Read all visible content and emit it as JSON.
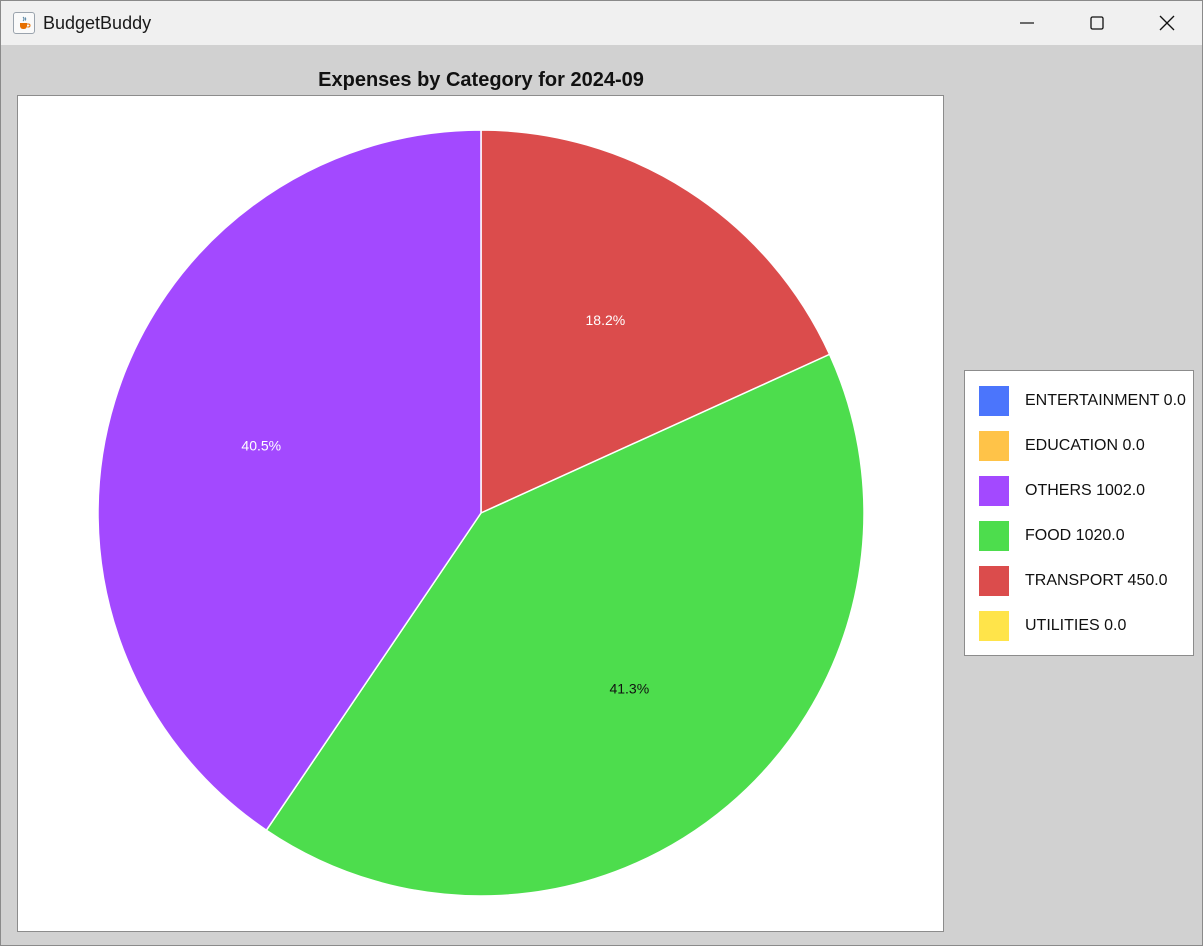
{
  "window": {
    "title": "BudgetBuddy",
    "app_icon": "java-cup-icon",
    "controls": [
      "minimize-icon",
      "maximize-icon",
      "close-icon"
    ]
  },
  "chart_data": {
    "type": "pie",
    "title": "Expenses by Category for 2024-09",
    "slices": [
      {
        "category": "TRANSPORT",
        "value": 450.0,
        "label": "18.2%",
        "color": "#db4c4c",
        "label_color": "#ffffff"
      },
      {
        "category": "FOOD",
        "value": 1020.0,
        "label": "41.3%",
        "color": "#4ddd4d",
        "label_color": "#111111"
      },
      {
        "category": "OTHERS",
        "value": 1002.0,
        "label": "40.5%",
        "color": "#a349ff",
        "label_color": "#ffffff"
      }
    ],
    "legend": {
      "placement": "right",
      "entries": [
        {
          "text": "ENTERTAINMENT 0.0",
          "color": "#4b75fc"
        },
        {
          "text": "EDUCATION 0.0",
          "color": "#ffc348"
        },
        {
          "text": "OTHERS 1002.0",
          "color": "#a349ff"
        },
        {
          "text": "FOOD 1020.0",
          "color": "#4ddd4d"
        },
        {
          "text": "TRANSPORT 450.0",
          "color": "#db4c4c"
        },
        {
          "text": "UTILITIES 0.0",
          "color": "#ffe44a"
        }
      ]
    }
  }
}
